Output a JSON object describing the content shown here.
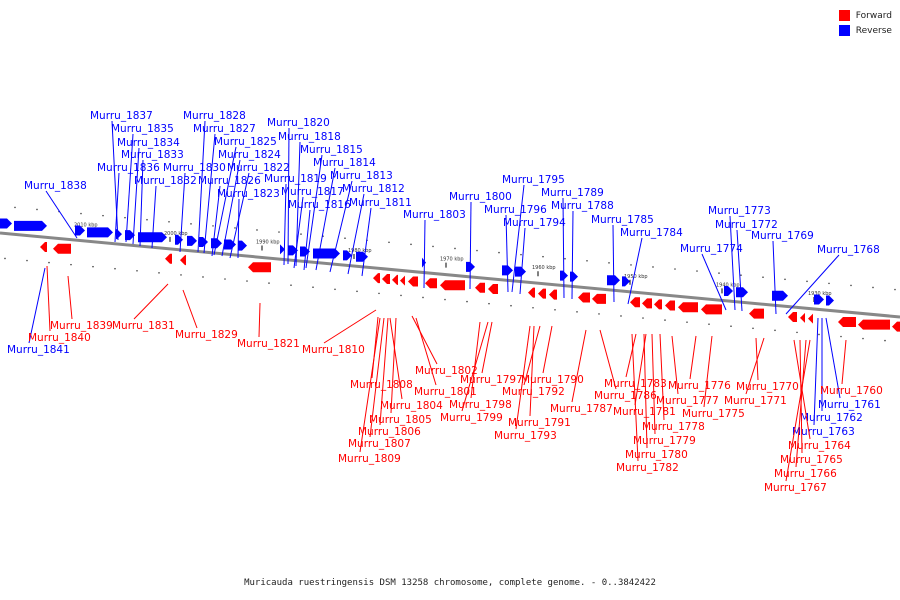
{
  "legend": [
    {
      "label": "Forward",
      "color": "#ff0000"
    },
    {
      "label": "Reverse",
      "color": "#0000ff"
    }
  ],
  "caption": "Muricauda ruestringensis DSM 13258 chromosome, complete genome. - 0..3842422",
  "colors": {
    "forward": "#ff0000",
    "reverse": "#0000ff",
    "axis": "#888888"
  },
  "ruler_ticks": [
    "2010 kbp",
    "2000 kbp",
    "1990 kbp",
    "1980 kbp",
    "1970 kbp",
    "1960 kbp",
    "1950 kbp",
    "1940 kbp",
    "1930 kbp"
  ],
  "reverse_genes": [
    "Murru_1838",
    "Murru_1837",
    "Murru_1835",
    "Murru_1834",
    "Murru_1833",
    "Murru_1836",
    "Murru_1832",
    "Murru_1828",
    "Murru_1827",
    "Murru_1825",
    "Murru_1824",
    "Murru_1830",
    "Murru_1822",
    "Murru_1826",
    "Murru_1823",
    "Murru_1820",
    "Murru_1818",
    "Murru_1815",
    "Murru_1814",
    "Murru_1819",
    "Murru_1813",
    "Murru_1817",
    "Murru_1812",
    "Murru_1816",
    "Murru_1811",
    "Murru_1803",
    "Murru_1800",
    "Murru_1795",
    "Murru_1796",
    "Murru_1794",
    "Murru_1789",
    "Murru_1788",
    "Murru_1785",
    "Murru_1784",
    "Murru_1773",
    "Murru_1772",
    "Murru_1774",
    "Murru_1769",
    "Murru_1768",
    "Murru_1841",
    "Murru_1761",
    "Murru_1762",
    "Murru_1763"
  ],
  "forward_genes": [
    "Murru_1839",
    "Murru_1840",
    "Murru_1831",
    "Murru_1829",
    "Murru_1821",
    "Murru_1810",
    "Murru_1802",
    "Murru_1808",
    "Murru_1801",
    "Murru_1804",
    "Murru_1805",
    "Murru_1806",
    "Murru_1807",
    "Murru_1809",
    "Murru_1797",
    "Murru_1798",
    "Murru_1799",
    "Murru_1790",
    "Murru_1792",
    "Murru_1791",
    "Murru_1793",
    "Murru_1786",
    "Murru_1787",
    "Murru_1783",
    "Murru_1781",
    "Murru_1778",
    "Murru_1779",
    "Murru_1780",
    "Murru_1782",
    "Murru_1776",
    "Murru_1777",
    "Murru_1775",
    "Murru_1770",
    "Murru_1771",
    "Murru_1760",
    "Murru_1764",
    "Murru_1765",
    "Murru_1766",
    "Murru_1767"
  ]
}
